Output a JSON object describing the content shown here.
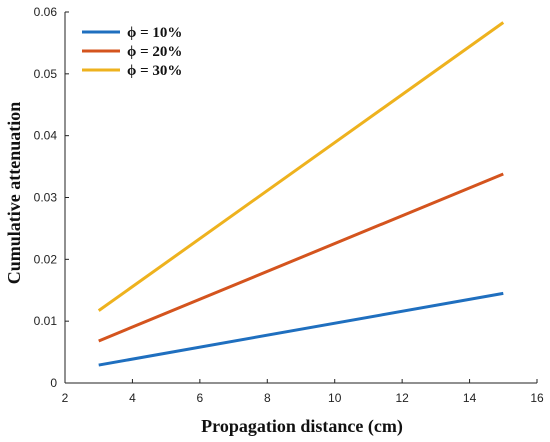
{
  "chart_data": {
    "type": "line",
    "xlabel": "Propagation distance (cm)",
    "ylabel": "Cumulative attenuation",
    "xlim": [
      2,
      16
    ],
    "ylim": [
      0,
      0.06
    ],
    "xticks": [
      "2",
      "4",
      "6",
      "8",
      "10",
      "12",
      "14",
      "16"
    ],
    "yticks": [
      "0",
      "0.01",
      "0.02",
      "0.03",
      "0.04",
      "0.05",
      "0.06"
    ],
    "grid": false,
    "legend_position": "top-left",
    "series": [
      {
        "name": "ϕ = 10%",
        "color": "#1f6fbf",
        "x": [
          3,
          15
        ],
        "y": [
          0.0029,
          0.0145
        ]
      },
      {
        "name": "ϕ = 20%",
        "color": "#d4541e",
        "x": [
          3,
          15
        ],
        "y": [
          0.0068,
          0.0338
        ]
      },
      {
        "name": "ϕ = 30%",
        "color": "#eeb21e",
        "x": [
          3,
          15
        ],
        "y": [
          0.0117,
          0.0583
        ]
      }
    ]
  }
}
